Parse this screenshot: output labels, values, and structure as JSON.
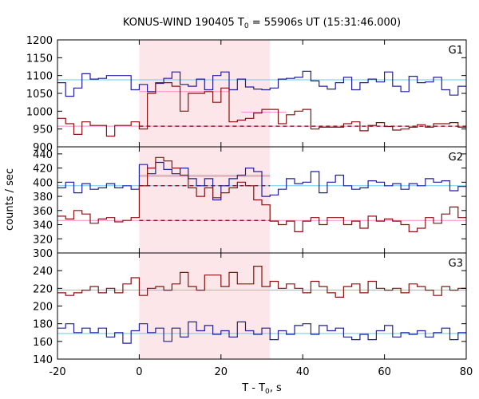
{
  "chart_data": {
    "type": "line",
    "title_main": "KONUS-WIND 190405 T",
    "title_sub": "0",
    "title_rest": " = 55906s UT (15:31:46.000)",
    "xlabel_main": "T - T",
    "xlabel_sub": "0",
    "xlabel_rest": ", s",
    "ylabel": "counts / sec",
    "xlim": [
      -20,
      80
    ],
    "xticks": [
      -20,
      0,
      20,
      40,
      60,
      80
    ],
    "shade_range": [
      0,
      32
    ],
    "colors": {
      "blue": "#1f1fa0",
      "red": "#8b1010",
      "cyan": "#66ccee",
      "pink": "#ff88cc",
      "dash": "#7a0010",
      "shade": "#fde6ea"
    },
    "panels": [
      {
        "name": "G1",
        "ylim": [
          900,
          1200
        ],
        "yticks": [
          900,
          950,
          1000,
          1050,
          1100,
          1150,
          1200
        ],
        "bg_blue": 1088,
        "bg_red": 958,
        "burst_blue": {
          "x": [
            0,
            22
          ],
          "y": 1055
        },
        "burst_red": {
          "x": [
            25,
            36
          ],
          "y": 997
        },
        "series": [
          {
            "name": "G1 blue",
            "color": "blue",
            "start": -20,
            "step": 2,
            "values": [
              1080,
              1042,
              1065,
              1105,
              1090,
              1092,
              1100,
              1100,
              1100,
              1060,
              1075,
              1055,
              1078,
              1092,
              1110,
              1075,
              1070,
              1090,
              1060,
              1100,
              1110,
              1060,
              1090,
              1068,
              1062,
              1060,
              1065,
              1090,
              1092,
              1095,
              1112,
              1085,
              1070,
              1062,
              1080,
              1095,
              1060,
              1080,
              1090,
              1082,
              1110,
              1070,
              1055,
              1098,
              1080,
              1082,
              1095,
              1060,
              1045,
              1070
            ]
          },
          {
            "name": "G1 red",
            "color": "red",
            "start": -20,
            "step": 2,
            "values": [
              980,
              965,
              935,
              970,
              960,
              960,
              930,
              960,
              960,
              970,
              950,
              1050,
              1080,
              1080,
              1070,
              1000,
              1050,
              1050,
              1055,
              1025,
              1065,
              970,
              975,
              980,
              995,
              1005,
              1005,
              965,
              990,
              1000,
              1005,
              950,
              955,
              955,
              955,
              965,
              970,
              945,
              960,
              968,
              957,
              947,
              950,
              955,
              962,
              955,
              965,
              965,
              968,
              955
            ]
          }
        ]
      },
      {
        "name": "G2",
        "ylim": [
          300,
          450
        ],
        "yticks": [
          300,
          320,
          340,
          360,
          380,
          400,
          420,
          440
        ],
        "bg_blue": 395,
        "bg_red": 346,
        "burst_blue": {
          "x": [
            0,
            32
          ],
          "y": 410
        },
        "burst_red": {
          "x": [
            0,
            32
          ],
          "y": 408
        },
        "series": [
          {
            "name": "G2 blue",
            "color": "blue",
            "start": -20,
            "step": 2,
            "values": [
              392,
              400,
              385,
              398,
              390,
              392,
              398,
              392,
              395,
              390,
              425,
              412,
              428,
              418,
              412,
              420,
              405,
              395,
              405,
              375,
              395,
              405,
              410,
              420,
              415,
              380,
              382,
              390,
              405,
              398,
              400,
              415,
              385,
              400,
              410,
              395,
              390,
              392,
              402,
              400,
              395,
              398,
              390,
              398,
              395,
              405,
              400,
              402,
              388,
              394
            ]
          },
          {
            "name": "G2 red",
            "color": "red",
            "start": -20,
            "step": 2,
            "values": [
              352,
              348,
              360,
              355,
              342,
              348,
              350,
              344,
              346,
              350,
              395,
              420,
              435,
              430,
              420,
              410,
              392,
              380,
              392,
              378,
              385,
              392,
              400,
              395,
              375,
              368,
              345,
              340,
              345,
              330,
              345,
              350,
              340,
              350,
              350,
              340,
              345,
              335,
              352,
              345,
              348,
              345,
              340,
              330,
              335,
              350,
              342,
              355,
              365,
              350
            ]
          }
        ]
      },
      {
        "name": "G3",
        "ylim": [
          140,
          260
        ],
        "yticks": [
          140,
          160,
          180,
          200,
          220,
          240
        ],
        "bg_blue": 169,
        "bg_red": 218,
        "series": [
          {
            "name": "G3 blue",
            "color": "blue",
            "start": -20,
            "step": 2,
            "values": [
              175,
              180,
              170,
              175,
              170,
              175,
              165,
              170,
              158,
              172,
              180,
              170,
              175,
              160,
              175,
              165,
              182,
              172,
              178,
              168,
              172,
              165,
              182,
              172,
              168,
              175,
              162,
              172,
              168,
              178,
              180,
              168,
              178,
              172,
              175,
              165,
              162,
              168,
              162,
              172,
              178,
              165,
              170,
              168,
              172,
              165,
              170,
              175,
              162,
              170
            ]
          },
          {
            "name": "G3 red",
            "color": "red",
            "start": -20,
            "step": 2,
            "values": [
              215,
              212,
              215,
              218,
              222,
              215,
              220,
              215,
              225,
              232,
              212,
              220,
              222,
              218,
              225,
              238,
              222,
              218,
              235,
              235,
              222,
              238,
              225,
              225,
              245,
              222,
              228,
              220,
              225,
              220,
              215,
              228,
              222,
              215,
              210,
              222,
              225,
              215,
              228,
              220,
              218,
              220,
              215,
              225,
              222,
              218,
              212,
              222,
              218,
              220
            ]
          }
        ]
      }
    ]
  }
}
